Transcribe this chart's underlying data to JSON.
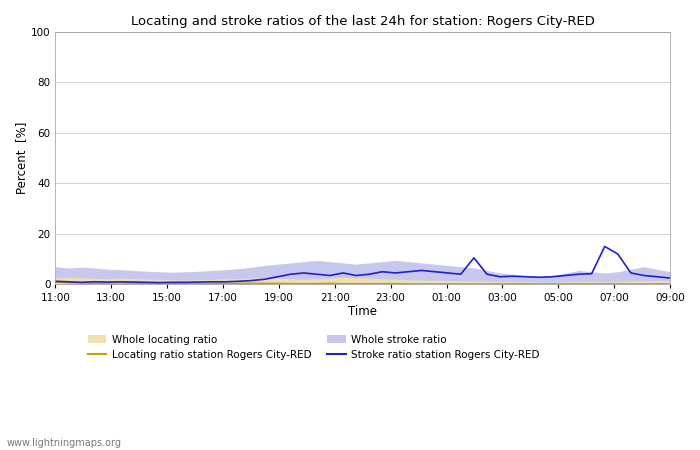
{
  "title": "Locating and stroke ratios of the last 24h for station: Rogers City-RED",
  "xlabel": "Time",
  "ylabel": "Percent  [%]",
  "ylim": [
    0,
    100
  ],
  "yticks": [
    0,
    20,
    40,
    60,
    80,
    100
  ],
  "x_tick_labels": [
    "11:00",
    "13:00",
    "15:00",
    "17:00",
    "19:00",
    "21:00",
    "23:00",
    "01:00",
    "03:00",
    "05:00",
    "07:00",
    "09:00"
  ],
  "watermark": "www.lightningmaps.org",
  "whole_locating_fill_color": "#f0e0b0",
  "whole_stroke_fill_color": "#c8c8ee",
  "locating_line_color": "#c8a000",
  "stroke_line_color": "#2020cc",
  "whole_locating": [
    2.5,
    2.8,
    2.6,
    2.4,
    2.2,
    2.5,
    2.3,
    2.1,
    2.0,
    1.8,
    1.7,
    1.9,
    2.0,
    2.2,
    2.3,
    2.5,
    2.6,
    2.4,
    2.2,
    2.0,
    2.2,
    2.5,
    2.8,
    2.6,
    2.4,
    2.2,
    2.0,
    1.8,
    1.7,
    1.6,
    1.5,
    1.4,
    1.3,
    1.2,
    1.1,
    1.0,
    1.0,
    0.9,
    0.9,
    1.0,
    1.1,
    1.2,
    1.0,
    1.1,
    1.3,
    1.4,
    1.5,
    1.4
  ],
  "whole_stroke": [
    7.0,
    6.5,
    6.8,
    6.5,
    6.0,
    5.8,
    5.5,
    5.2,
    5.0,
    4.8,
    5.0,
    5.2,
    5.5,
    5.8,
    6.2,
    6.8,
    7.5,
    8.0,
    8.5,
    9.0,
    9.5,
    9.0,
    8.5,
    8.0,
    8.5,
    9.0,
    9.5,
    9.0,
    8.5,
    8.0,
    7.5,
    7.0,
    6.5,
    5.5,
    4.5,
    4.0,
    3.5,
    3.0,
    3.5,
    4.5,
    5.5,
    5.0,
    4.5,
    5.0,
    6.0,
    7.0,
    6.0,
    5.0
  ],
  "locating_ratio": [
    0.8,
    0.6,
    0.5,
    0.4,
    0.4,
    0.5,
    0.4,
    0.4,
    0.3,
    0.3,
    0.3,
    0.3,
    0.4,
    0.4,
    0.4,
    0.5,
    0.4,
    0.4,
    0.3,
    0.3,
    0.3,
    0.4,
    0.3,
    0.3,
    0.3,
    0.3,
    0.3,
    0.2,
    0.2,
    0.2,
    0.2,
    0.2,
    0.2,
    0.2,
    0.2,
    0.2,
    0.2,
    0.2,
    0.2,
    0.2,
    0.2,
    0.2,
    0.2,
    0.2,
    0.2,
    0.2,
    0.2,
    0.2
  ],
  "stroke_ratio": [
    1.2,
    1.0,
    0.8,
    1.0,
    0.9,
    1.0,
    0.9,
    0.8,
    0.7,
    0.8,
    0.8,
    0.9,
    1.0,
    1.0,
    1.2,
    1.5,
    2.0,
    3.0,
    4.0,
    4.5,
    4.0,
    3.5,
    4.5,
    3.5,
    4.0,
    5.0,
    4.5,
    5.0,
    5.5,
    5.0,
    4.5,
    4.0,
    10.5,
    4.0,
    3.0,
    3.2,
    3.0,
    2.8,
    3.0,
    3.5,
    4.0,
    4.2,
    15.0,
    12.0,
    4.5,
    3.5,
    3.0,
    2.5
  ]
}
